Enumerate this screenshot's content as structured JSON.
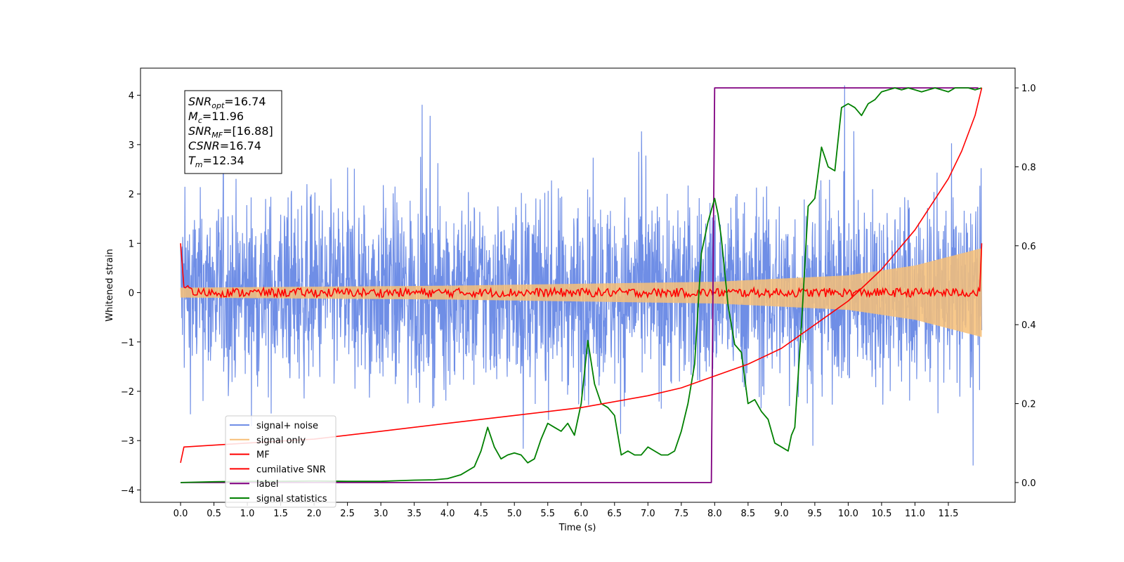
{
  "chart_data": {
    "type": "line",
    "title": "",
    "xlabel": "Time (s)",
    "ylabel": "Whitened strain",
    "ylabel_right": "",
    "xlim": [
      -0.6,
      12.5
    ],
    "ylim": [
      -4.25,
      4.55
    ],
    "ylim_right": [
      -0.05,
      1.05
    ],
    "x_ticks": [
      "0.0",
      "0.5",
      "1.0",
      "1.5",
      "2.0",
      "2.5",
      "3.0",
      "3.5",
      "4.0",
      "4.5",
      "5.0",
      "5.5",
      "6.0",
      "6.5",
      "7.0",
      "7.5",
      "8.0",
      "8.5",
      "9.0",
      "9.5",
      "10.0",
      "10.5",
      "11.0",
      "11.5"
    ],
    "y_ticks": [
      "−4",
      "−3",
      "−2",
      "−1",
      "0",
      "1",
      "2",
      "3",
      "4"
    ],
    "y_ticks_right": [
      "0.0",
      "0.2",
      "0.4",
      "0.6",
      "0.8",
      "1.0"
    ],
    "grid": false,
    "legend_position": "lower-left",
    "series": [
      {
        "name": "signal+ noise",
        "color": "#6f8ee6",
        "axis": "left",
        "description_values": {
          "amplitude_range": [
            -3.8,
            4.2
          ]
        }
      },
      {
        "name": "signal only",
        "color": "#f7bf77",
        "axis": "left",
        "envelope": {
          "x": [
            0,
            4,
            8,
            10,
            11,
            12
          ],
          "amplitude": [
            0.1,
            0.14,
            0.22,
            0.35,
            0.55,
            0.9
          ]
        }
      },
      {
        "name": "MF",
        "color": "#ff0000",
        "axis": "left",
        "start_value": 1.0,
        "baseline": 0.0,
        "end_value": 1.0
      },
      {
        "name": "cumilative SNR",
        "color": "#ff0000",
        "axis": "right",
        "x": [
          0,
          0.05,
          1,
          2,
          3,
          4,
          5,
          6,
          7,
          7.5,
          8,
          8.5,
          9,
          9.5,
          10,
          10.5,
          11,
          11.5,
          11.7,
          11.9,
          12
        ],
        "values": [
          0.05,
          0.09,
          0.1,
          0.11,
          0.13,
          0.15,
          0.17,
          0.19,
          0.22,
          0.24,
          0.27,
          0.3,
          0.34,
          0.4,
          0.46,
          0.54,
          0.64,
          0.77,
          0.84,
          0.93,
          1.0
        ]
      },
      {
        "name": "label",
        "color": "#800080",
        "axis": "right",
        "x": [
          0,
          7.95,
          8.0,
          11.95
        ],
        "values": [
          0.0,
          0.0,
          1.0,
          1.0
        ]
      },
      {
        "name": "signal statistics",
        "color": "#008000",
        "axis": "right",
        "x": [
          0,
          0.5,
          1,
          1.5,
          2,
          2.5,
          3,
          3.3,
          3.5,
          3.8,
          4,
          4.2,
          4.4,
          4.5,
          4.6,
          4.7,
          4.8,
          4.9,
          5,
          5.1,
          5.2,
          5.3,
          5.4,
          5.5,
          5.6,
          5.7,
          5.8,
          5.9,
          6,
          6.1,
          6.2,
          6.3,
          6.4,
          6.5,
          6.6,
          6.7,
          6.8,
          6.9,
          7,
          7.1,
          7.2,
          7.3,
          7.4,
          7.5,
          7.6,
          7.7,
          7.8,
          7.9,
          8,
          8.05,
          8.1,
          8.2,
          8.3,
          8.4,
          8.5,
          8.6,
          8.7,
          8.8,
          8.9,
          9,
          9.1,
          9.15,
          9.2,
          9.3,
          9.4,
          9.5,
          9.6,
          9.7,
          9.8,
          9.9,
          10,
          10.1,
          10.2,
          10.3,
          10.4,
          10.5,
          10.6,
          10.7,
          10.8,
          10.9,
          11,
          11.1,
          11.2,
          11.3,
          11.4,
          11.5,
          11.6,
          11.7,
          11.8,
          11.9,
          12
        ],
        "values": [
          0,
          0.002,
          0.003,
          0.003,
          0.004,
          0.003,
          0.003,
          0.005,
          0.006,
          0.007,
          0.01,
          0.02,
          0.04,
          0.08,
          0.14,
          0.09,
          0.06,
          0.07,
          0.075,
          0.07,
          0.05,
          0.06,
          0.11,
          0.15,
          0.14,
          0.13,
          0.15,
          0.12,
          0.2,
          0.36,
          0.25,
          0.2,
          0.19,
          0.17,
          0.07,
          0.08,
          0.07,
          0.07,
          0.09,
          0.08,
          0.07,
          0.07,
          0.08,
          0.13,
          0.2,
          0.3,
          0.58,
          0.66,
          0.72,
          0.68,
          0.62,
          0.45,
          0.35,
          0.33,
          0.2,
          0.21,
          0.18,
          0.16,
          0.1,
          0.09,
          0.08,
          0.12,
          0.14,
          0.4,
          0.7,
          0.72,
          0.85,
          0.8,
          0.79,
          0.95,
          0.96,
          0.95,
          0.93,
          0.96,
          0.97,
          0.99,
          0.995,
          1.0,
          0.995,
          1.0,
          0.995,
          0.99,
          0.995,
          1.0,
          0.995,
          0.99,
          1.0,
          1.0,
          1.0,
          0.995,
          1.0
        ]
      }
    ],
    "annotations": [
      {
        "base": "SNR",
        "sub": "opt",
        "value": "=16.74"
      },
      {
        "base": "M",
        "sub": "c",
        "value": "=11.96"
      },
      {
        "base": "SNR",
        "sub": "MF",
        "value": "=[16.88]"
      },
      {
        "base": "CSNR",
        "sub": "",
        "value": "=16.74"
      },
      {
        "base": "T",
        "sub": "m",
        "value": "=12.34"
      }
    ]
  }
}
